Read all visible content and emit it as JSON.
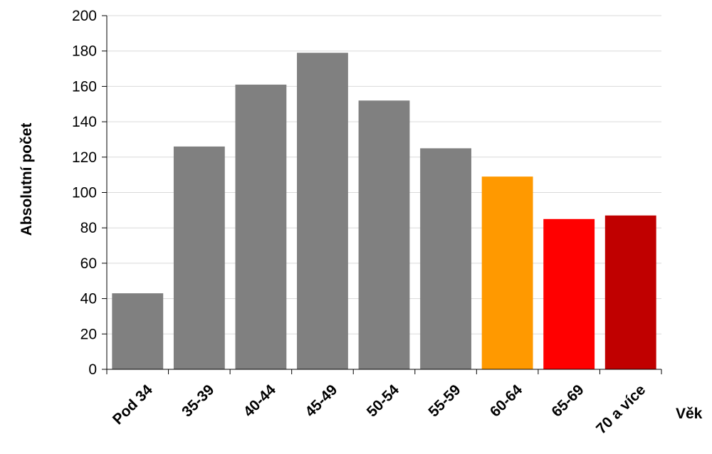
{
  "chart_data": {
    "type": "bar",
    "title": "",
    "xlabel": "Věk",
    "ylabel": "Absolutní počet",
    "categories": [
      "Pod 34",
      "35-39",
      "40-44",
      "45-49",
      "50-54",
      "55-59",
      "60-64",
      "65-69",
      "70 a více"
    ],
    "values": [
      43,
      126,
      161,
      179,
      152,
      125,
      109,
      85,
      87
    ],
    "bar_colors": [
      "#808080",
      "#808080",
      "#808080",
      "#808080",
      "#808080",
      "#808080",
      "#FF9900",
      "#FF0000",
      "#C00000"
    ],
    "ylim": [
      0,
      200
    ],
    "yticks": [
      0,
      20,
      40,
      60,
      80,
      100,
      120,
      140,
      160,
      180,
      200
    ],
    "grid": true,
    "legend": "none"
  }
}
